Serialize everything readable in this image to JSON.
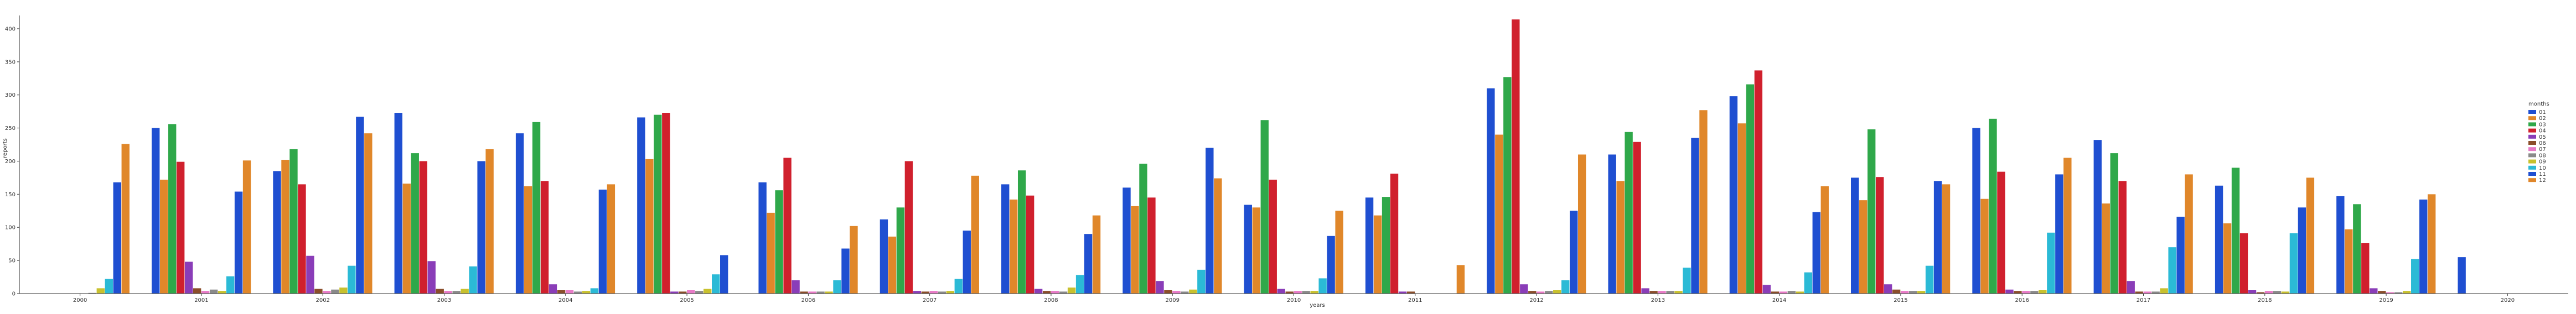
{
  "chart_data": {
    "type": "bar",
    "title": "",
    "xlabel": "years",
    "ylabel": "reports",
    "ylim": [
      0,
      420
    ],
    "yticks": [
      0,
      50,
      100,
      150,
      200,
      250,
      300,
      350,
      400
    ],
    "categories": [
      "2000",
      "2001",
      "2002",
      "2003",
      "2004",
      "2005",
      "2006",
      "2007",
      "2008",
      "2009",
      "2010",
      "2011",
      "2012",
      "2013",
      "2014",
      "2015",
      "2016",
      "2017",
      "2018",
      "2019",
      "2020"
    ],
    "legend": {
      "title": "months",
      "position": "right"
    },
    "series": [
      {
        "name": "01",
        "color": "#1f4fd1",
        "values": [
          0,
          250,
          185,
          273,
          242,
          266,
          168,
          112,
          165,
          160,
          134,
          145,
          310,
          210,
          298,
          175,
          250,
          232,
          163,
          147,
          55
        ]
      },
      {
        "name": "02",
        "color": "#e0872a",
        "values": [
          0,
          172,
          202,
          166,
          162,
          203,
          122,
          86,
          142,
          132,
          130,
          118,
          240,
          170,
          257,
          141,
          143,
          136,
          106,
          97,
          0
        ]
      },
      {
        "name": "03",
        "color": "#2fa84a",
        "values": [
          0,
          256,
          218,
          212,
          259,
          270,
          156,
          130,
          186,
          196,
          262,
          146,
          327,
          244,
          316,
          248,
          264,
          212,
          190,
          135,
          0
        ]
      },
      {
        "name": "04",
        "color": "#d0202d",
        "values": [
          0,
          199,
          165,
          200,
          170,
          273,
          205,
          200,
          148,
          145,
          172,
          181,
          414,
          229,
          337,
          176,
          184,
          170,
          91,
          76,
          0
        ]
      },
      {
        "name": "05",
        "color": "#8a3db8",
        "values": [
          0,
          48,
          57,
          49,
          14,
          3,
          20,
          4,
          7,
          19,
          7,
          3,
          14,
          8,
          13,
          14,
          6,
          19,
          5,
          8,
          0
        ]
      },
      {
        "name": "06",
        "color": "#8b4e2b",
        "values": [
          0,
          8,
          7,
          7,
          5,
          3,
          3,
          3,
          4,
          5,
          3,
          3,
          4,
          4,
          3,
          6,
          4,
          3,
          2,
          4,
          0
        ]
      },
      {
        "name": "07",
        "color": "#e87ac7",
        "values": [
          0,
          4,
          4,
          4,
          5,
          5,
          3,
          4,
          4,
          4,
          4,
          0,
          3,
          4,
          3,
          4,
          4,
          3,
          4,
          2,
          0
        ]
      },
      {
        "name": "08",
        "color": "#8a8a8a",
        "values": [
          1,
          6,
          6,
          4,
          3,
          4,
          3,
          3,
          3,
          3,
          4,
          0,
          4,
          4,
          4,
          4,
          4,
          3,
          4,
          2,
          0
        ]
      },
      {
        "name": "09",
        "color": "#c8c12e",
        "values": [
          8,
          4,
          9,
          7,
          4,
          7,
          3,
          4,
          9,
          6,
          4,
          0,
          5,
          4,
          3,
          4,
          5,
          8,
          3,
          4,
          0
        ]
      },
      {
        "name": "10",
        "color": "#2bbad6",
        "values": [
          22,
          26,
          42,
          41,
          8,
          29,
          20,
          22,
          28,
          36,
          23,
          0,
          20,
          39,
          32,
          42,
          92,
          70,
          91,
          52,
          0
        ]
      },
      {
        "name": "11",
        "color": "#1f4fd1",
        "values": [
          168,
          154,
          267,
          200,
          157,
          58,
          68,
          95,
          90,
          220,
          87,
          0,
          125,
          235,
          123,
          170,
          180,
          116,
          130,
          142,
          0
        ]
      },
      {
        "name": "12",
        "color": "#e0872a",
        "values": [
          226,
          201,
          242,
          218,
          165,
          0,
          102,
          178,
          118,
          174,
          125,
          43,
          210,
          277,
          162,
          165,
          205,
          180,
          175,
          150,
          0
        ]
      }
    ]
  }
}
